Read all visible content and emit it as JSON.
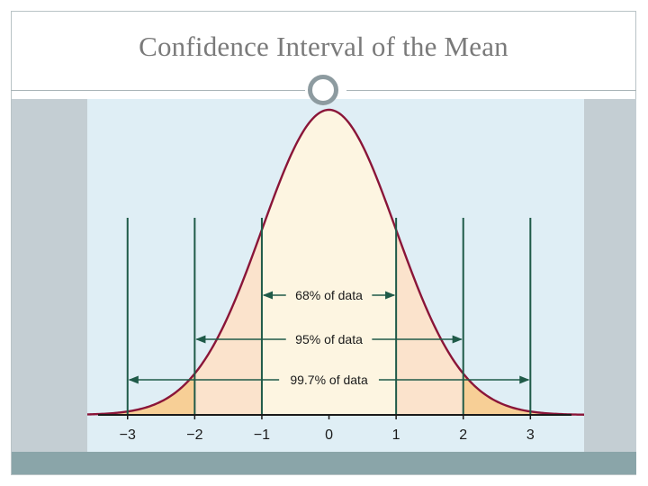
{
  "slide": {
    "title": "Confidence Interval of the Mean"
  },
  "colors": {
    "background": "#dfeef5",
    "curve": "#8a1538",
    "band_68": "#fdf5e1",
    "band_95": "#fbe3cc",
    "band_997": "#f7cf96",
    "vertical_lines": "#1f5a48",
    "axis": "#1a1a1a",
    "footer": "#8aa5a9",
    "side_panels": "#c4ced3"
  },
  "chart_data": {
    "type": "area",
    "distribution": "normal",
    "mean": 0,
    "sd": 1,
    "x_ticks": [
      -3,
      -2,
      -1,
      0,
      1,
      2,
      3
    ],
    "tick_labels": [
      "−3",
      "−2",
      "−1",
      "0",
      "1",
      "2",
      "3"
    ],
    "xlim": [
      -3.6,
      3.8
    ],
    "intervals": [
      {
        "lower": -1,
        "upper": 1,
        "label": "68% of data"
      },
      {
        "lower": -2,
        "upper": 2,
        "label": "95% of data"
      },
      {
        "lower": -3,
        "upper": 3,
        "label": "99.7% of data"
      }
    ],
    "grid": false
  }
}
